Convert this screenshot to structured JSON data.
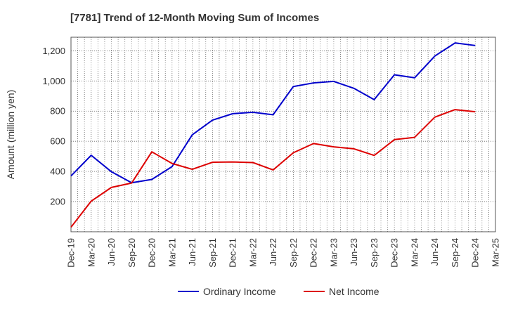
{
  "chart_data": {
    "type": "line",
    "title": "[7781]  Trend of 12-Month Moving Sum of Incomes",
    "xlabel": "",
    "ylabel": "Amount (million yen)",
    "ylim": [
      0,
      1290
    ],
    "yticks": [
      200,
      400,
      600,
      800,
      1000,
      1200
    ],
    "ytick_labels": [
      "200",
      "400",
      "600",
      "800",
      "1,000",
      "1,200"
    ],
    "categories": [
      "Dec-19",
      "Mar-20",
      "Jun-20",
      "Sep-20",
      "Dec-20",
      "Mar-21",
      "Jun-21",
      "Sep-21",
      "Dec-21",
      "Mar-22",
      "Jun-22",
      "Sep-22",
      "Dec-22",
      "Mar-23",
      "Jun-23",
      "Sep-23",
      "Dec-23",
      "Mar-24",
      "Jun-24",
      "Sep-24",
      "Dec-24",
      "Mar-25"
    ],
    "grid": true,
    "legend_position": "bottom",
    "series": [
      {
        "name": "Ordinary Income",
        "color": "#0000cc",
        "values": [
          370,
          507,
          398,
          325,
          347,
          432,
          643,
          740,
          783,
          792,
          776,
          963,
          987,
          997,
          951,
          876,
          1041,
          1021,
          1165,
          1252,
          1235,
          null
        ]
      },
      {
        "name": "Net Income",
        "color": "#dd0000",
        "values": [
          30,
          203,
          294,
          323,
          530,
          453,
          414,
          461,
          463,
          459,
          410,
          524,
          585,
          563,
          550,
          506,
          611,
          626,
          760,
          810,
          796,
          null
        ]
      }
    ]
  }
}
